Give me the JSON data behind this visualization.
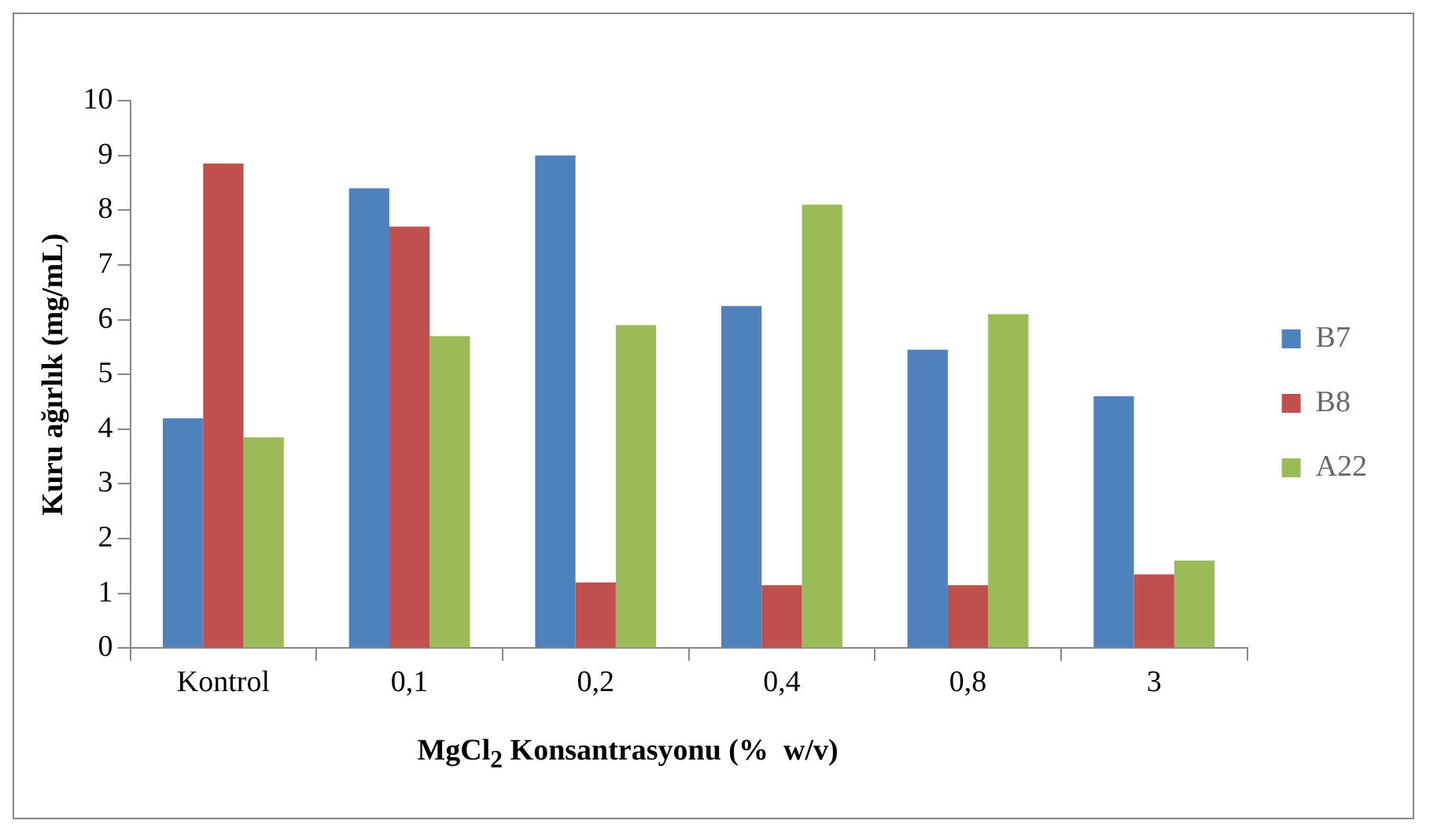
{
  "chart_data": {
    "type": "bar",
    "xlabel": "MgCl$_{2}$ Konsantrasyonu (%  w/v)",
    "ylabel": "Kuru ağırlık (mg/mL)",
    "categories": [
      "Kontrol",
      "0,1",
      "0,2",
      "0,4",
      "0,8",
      "3"
    ],
    "series": [
      {
        "name": "B7",
        "color": "#4f81bd",
        "values": [
          4.2,
          8.4,
          9.0,
          6.25,
          5.45,
          4.6
        ]
      },
      {
        "name": "B8",
        "color": "#c0504d",
        "values": [
          8.85,
          7.7,
          1.2,
          1.15,
          1.15,
          1.35
        ]
      },
      {
        "name": "A22",
        "color": "#9bbb59",
        "values": [
          3.85,
          5.7,
          5.9,
          8.1,
          6.1,
          1.6
        ]
      }
    ],
    "ylim": [
      0,
      10
    ],
    "yticks": [
      0,
      1,
      2,
      3,
      4,
      5,
      6,
      7,
      8,
      9,
      10
    ],
    "grid": false,
    "legend": "right"
  }
}
